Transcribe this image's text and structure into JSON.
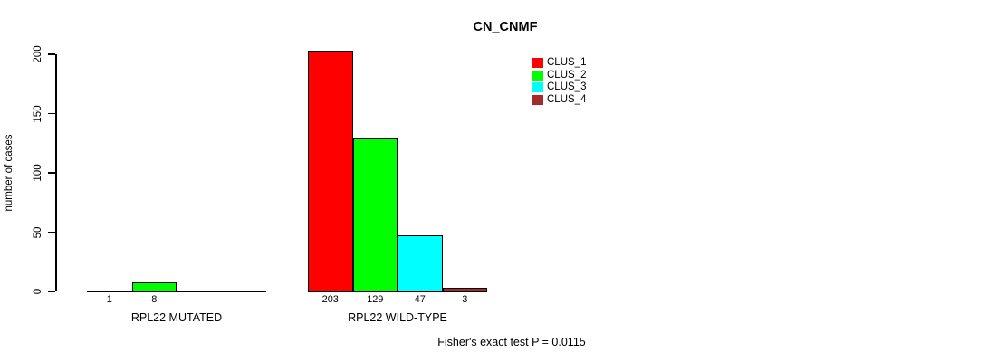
{
  "title": "CN_CNMF",
  "footer": "Fisher's exact test P = 0.0115",
  "chart_data": {
    "type": "bar",
    "title": "CN_CNMF",
    "xlabel": "",
    "ylabel": "number of cases",
    "ylim": [
      0,
      200
    ],
    "yticks": [
      0,
      50,
      100,
      150,
      200
    ],
    "grid": false,
    "legend_position": "top-right",
    "categories": [
      "RPL22 MUTATED",
      "RPL22 WILD-TYPE"
    ],
    "series": [
      {
        "name": "CLUS_1",
        "color": "#FF0000",
        "values": [
          1,
          203
        ]
      },
      {
        "name": "CLUS_2",
        "color": "#00FF00",
        "values": [
          8,
          129
        ]
      },
      {
        "name": "CLUS_3",
        "color": "#00FFFF",
        "values": [
          0,
          47
        ]
      },
      {
        "name": "CLUS_4",
        "color": "#A52A2A",
        "values": [
          0,
          3
        ]
      }
    ],
    "bar_labels": [
      [
        "1",
        "8",
        "",
        ""
      ],
      [
        "203",
        "129",
        "47",
        "3"
      ]
    ],
    "annotation": "Fisher's exact test P = 0.0115"
  }
}
